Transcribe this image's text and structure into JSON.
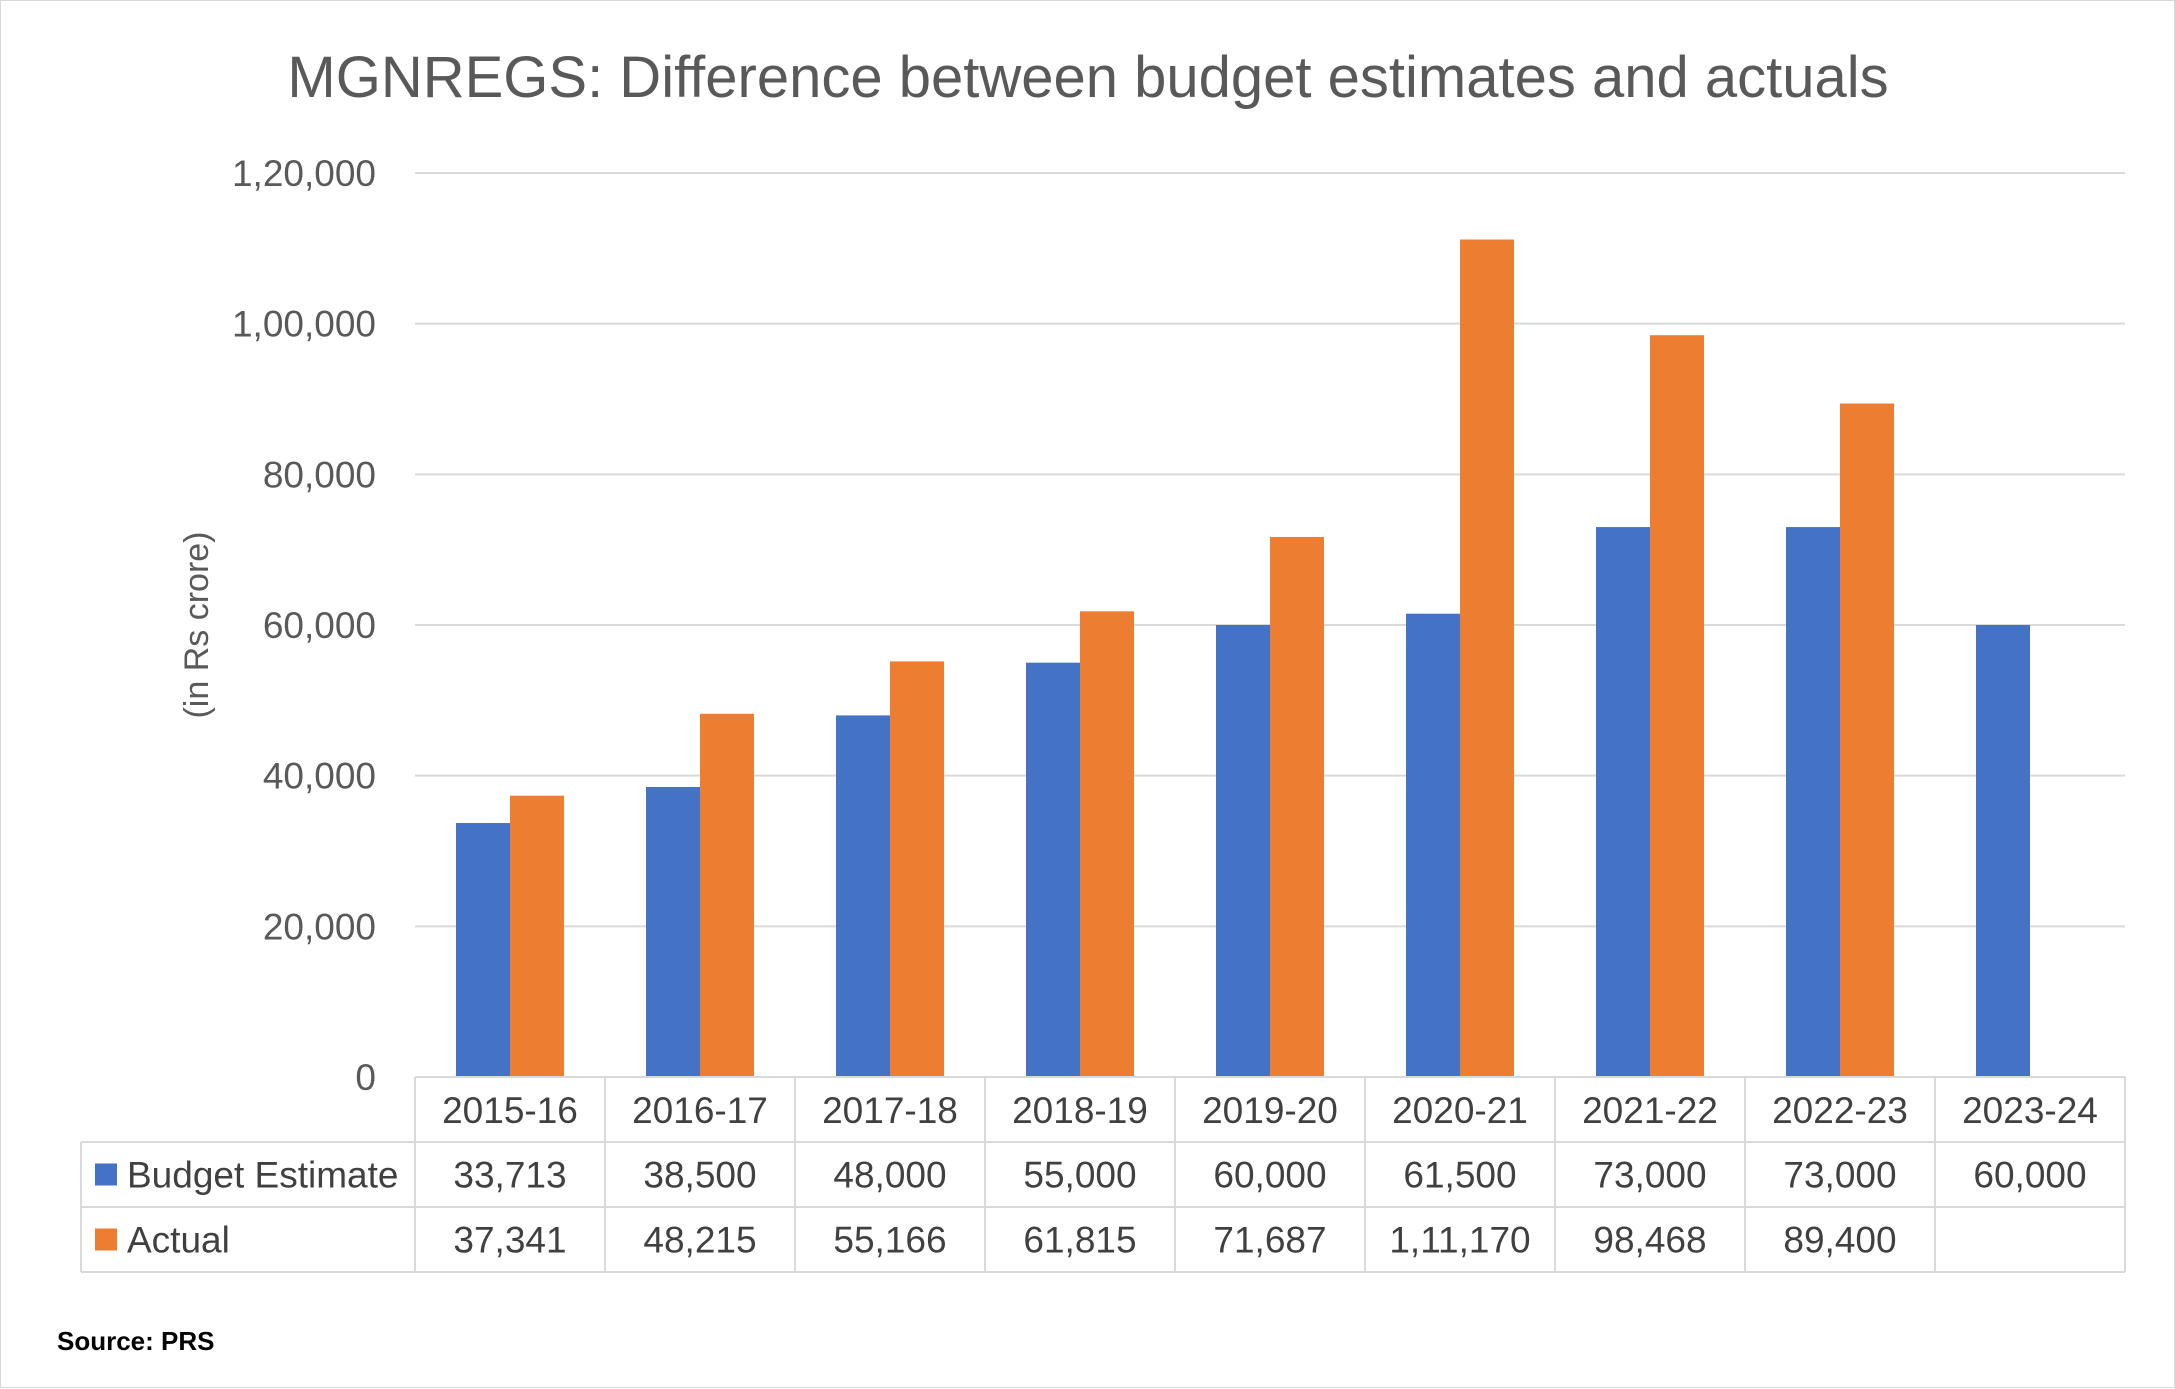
{
  "chart_data": {
    "type": "bar",
    "title": "MGNREGS: Difference between budget estimates and actuals",
    "ylabel": "(in Rs crore)",
    "xlabel": "",
    "ylim": [
      0,
      120000
    ],
    "yticks": [
      0,
      20000,
      40000,
      60000,
      80000,
      100000,
      120000
    ],
    "ytick_labels": [
      "0",
      "20,000",
      "40,000",
      "60,000",
      "80,000",
      "1,00,000",
      "1,20,000"
    ],
    "grid": true,
    "legend": "data-table",
    "categories": [
      "2015-16",
      "2016-17",
      "2017-18",
      "2018-19",
      "2019-20",
      "2020-21",
      "2021-22",
      "2022-23",
      "2023-24"
    ],
    "series": [
      {
        "name": "Budget Estimate",
        "color": "#4472c4",
        "values": [
          33713,
          38500,
          48000,
          55000,
          60000,
          61500,
          73000,
          73000,
          60000
        ],
        "labels": [
          "33,713",
          "38,500",
          "48,000",
          "55,000",
          "60,000",
          "61,500",
          "73,000",
          "73,000",
          "60,000"
        ]
      },
      {
        "name": "Actual",
        "color": "#ed7d31",
        "values": [
          37341,
          48215,
          55166,
          61815,
          71687,
          111170,
          98468,
          89400,
          null
        ],
        "labels": [
          "37,341",
          "48,215",
          "55,166",
          "61,815",
          "71,687",
          "1,11,170",
          "98,468",
          "89,400",
          ""
        ]
      }
    ]
  },
  "source": "Source: PRS"
}
